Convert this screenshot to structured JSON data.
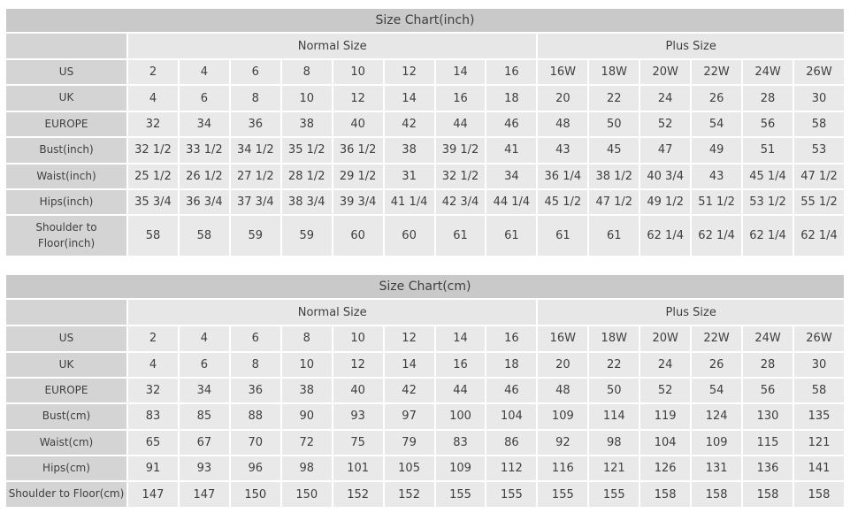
{
  "colors": {
    "title_bar": "#c9c9c9",
    "header_col": "#d4d4d4",
    "group_header": "#e7e7e7",
    "data_cell": "#e9e9e9",
    "text": "#3f3f3f",
    "gap": "#ffffff"
  },
  "tables": [
    {
      "title": "Size Chart(inch)",
      "column_groups": [
        {
          "label": "Normal Size",
          "colspan": 8
        },
        {
          "label": "Plus Size",
          "colspan": 6
        }
      ],
      "rows": [
        {
          "label": "US",
          "values": [
            "2",
            "4",
            "6",
            "8",
            "10",
            "12",
            "14",
            "16",
            "16W",
            "18W",
            "20W",
            "22W",
            "24W",
            "26W"
          ]
        },
        {
          "label": "UK",
          "values": [
            "4",
            "6",
            "8",
            "10",
            "12",
            "14",
            "16",
            "18",
            "20",
            "22",
            "24",
            "26",
            "28",
            "30"
          ]
        },
        {
          "label": "EUROPE",
          "values": [
            "32",
            "34",
            "36",
            "38",
            "40",
            "42",
            "44",
            "46",
            "48",
            "50",
            "52",
            "54",
            "56",
            "58"
          ]
        },
        {
          "label": "Bust(inch)",
          "values": [
            "32 1/2",
            "33 1/2",
            "34 1/2",
            "35 1/2",
            "36 1/2",
            "38",
            "39 1/2",
            "41",
            "43",
            "45",
            "47",
            "49",
            "51",
            "53"
          ]
        },
        {
          "label": "Waist(inch)",
          "values": [
            "25 1/2",
            "26 1/2",
            "27 1/2",
            "28 1/2",
            "29 1/2",
            "31",
            "32 1/2",
            "34",
            "36 1/4",
            "38 1/2",
            "40 3/4",
            "43",
            "45 1/4",
            "47 1/2"
          ]
        },
        {
          "label": "Hips(inch)",
          "values": [
            "35 3/4",
            "36 3/4",
            "37 3/4",
            "38 3/4",
            "39 3/4",
            "41 1/4",
            "42 3/4",
            "44 1/4",
            "45 1/2",
            "47 1/2",
            "49 1/2",
            "51 1/2",
            "53 1/2",
            "55 1/2"
          ]
        },
        {
          "label": "Shoulder to Floor(inch)",
          "values": [
            "58",
            "58",
            "59",
            "59",
            "60",
            "60",
            "61",
            "61",
            "61",
            "61",
            "62 1/4",
            "62 1/4",
            "62 1/4",
            "62 1/4"
          ]
        }
      ]
    },
    {
      "title": "Size Chart(cm)",
      "column_groups": [
        {
          "label": "Normal Size",
          "colspan": 8
        },
        {
          "label": "Plus Size",
          "colspan": 6
        }
      ],
      "rows": [
        {
          "label": "US",
          "values": [
            "2",
            "4",
            "6",
            "8",
            "10",
            "12",
            "14",
            "16",
            "16W",
            "18W",
            "20W",
            "22W",
            "24W",
            "26W"
          ]
        },
        {
          "label": "UK",
          "values": [
            "4",
            "6",
            "8",
            "10",
            "12",
            "14",
            "16",
            "18",
            "20",
            "22",
            "24",
            "26",
            "28",
            "30"
          ]
        },
        {
          "label": "EUROPE",
          "values": [
            "32",
            "34",
            "36",
            "38",
            "40",
            "42",
            "44",
            "46",
            "48",
            "50",
            "52",
            "54",
            "56",
            "58"
          ]
        },
        {
          "label": "Bust(cm)",
          "values": [
            "83",
            "85",
            "88",
            "90",
            "93",
            "97",
            "100",
            "104",
            "109",
            "114",
            "119",
            "124",
            "130",
            "135"
          ]
        },
        {
          "label": "Waist(cm)",
          "values": [
            "65",
            "67",
            "70",
            "72",
            "75",
            "79",
            "83",
            "86",
            "92",
            "98",
            "104",
            "109",
            "115",
            "121"
          ]
        },
        {
          "label": "Hips(cm)",
          "values": [
            "91",
            "93",
            "96",
            "98",
            "101",
            "105",
            "109",
            "112",
            "116",
            "121",
            "126",
            "131",
            "136",
            "141"
          ]
        },
        {
          "label": "Shoulder to Floor(cm)",
          "values": [
            "147",
            "147",
            "150",
            "150",
            "152",
            "152",
            "155",
            "155",
            "155",
            "155",
            "158",
            "158",
            "158",
            "158"
          ]
        }
      ]
    }
  ]
}
